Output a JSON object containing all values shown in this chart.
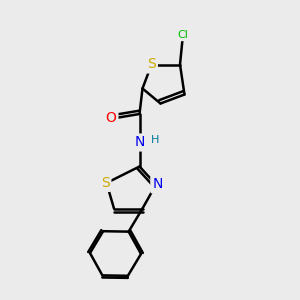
{
  "bg_color": "#ebebeb",
  "bond_color": "#000000",
  "bond_width": 1.8,
  "atom_colors": {
    "Cl": "#00bb00",
    "S": "#ccaa00",
    "O": "#ff0000",
    "N": "#0000ee",
    "H": "#007799",
    "C": "#000000"
  },
  "font_size_main": 10,
  "font_size_small": 8
}
